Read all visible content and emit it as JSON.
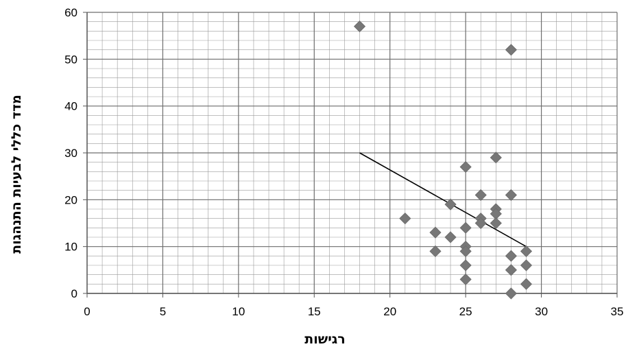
{
  "chart_data": {
    "type": "scatter",
    "title": "",
    "xlabel": "רגישות",
    "ylabel": "מדד כללי לבעיות התנהגות",
    "xlim": [
      0,
      35
    ],
    "ylim": [
      0,
      60
    ],
    "x_ticks": [
      "0",
      "5",
      "10",
      "15",
      "20",
      "25",
      "30",
      "35"
    ],
    "y_ticks": [
      "0",
      "10",
      "20",
      "30",
      "40",
      "50",
      "60"
    ],
    "major_grid_x": 5,
    "major_grid_y": 10,
    "minor_grid_x": 1,
    "minor_grid_y": 2,
    "grid": true,
    "marker": "diamond",
    "marker_color": "#777777",
    "points": [
      {
        "x": 18,
        "y": 57
      },
      {
        "x": 28,
        "y": 52
      },
      {
        "x": 27,
        "y": 29
      },
      {
        "x": 25,
        "y": 27
      },
      {
        "x": 26,
        "y": 21
      },
      {
        "x": 28,
        "y": 21
      },
      {
        "x": 24,
        "y": 19
      },
      {
        "x": 27,
        "y": 18
      },
      {
        "x": 27,
        "y": 17
      },
      {
        "x": 21,
        "y": 16
      },
      {
        "x": 26,
        "y": 16
      },
      {
        "x": 26,
        "y": 15
      },
      {
        "x": 27,
        "y": 15
      },
      {
        "x": 25,
        "y": 14
      },
      {
        "x": 23,
        "y": 13
      },
      {
        "x": 24,
        "y": 12
      },
      {
        "x": 25,
        "y": 10
      },
      {
        "x": 23,
        "y": 9
      },
      {
        "x": 25,
        "y": 9
      },
      {
        "x": 29,
        "y": 9
      },
      {
        "x": 28,
        "y": 8
      },
      {
        "x": 25,
        "y": 6
      },
      {
        "x": 29,
        "y": 6
      },
      {
        "x": 28,
        "y": 5
      },
      {
        "x": 25,
        "y": 3
      },
      {
        "x": 29,
        "y": 2
      },
      {
        "x": 28,
        "y": 0
      }
    ],
    "trendline": {
      "x1": 18,
      "y1": 30,
      "x2": 29,
      "y2": 10,
      "color": "#000000"
    }
  }
}
